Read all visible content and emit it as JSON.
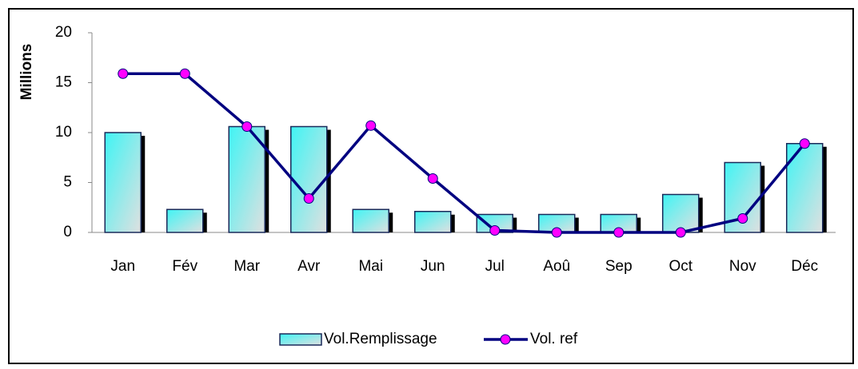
{
  "chart_data": {
    "type": "bar_line",
    "y_axis_label": "Millions",
    "categories": [
      "Jan",
      "Fév",
      "Mar",
      "Avr",
      "Mai",
      "Jun",
      "Jul",
      "Aoû",
      "Sep",
      "Oct",
      "Nov",
      "Déc"
    ],
    "series": [
      {
        "name": "Vol.Remplissage",
        "type": "bar",
        "color": "#40f0f0",
        "values": [
          10.0,
          2.3,
          10.6,
          10.6,
          2.3,
          2.1,
          1.8,
          1.8,
          1.8,
          3.8,
          7.0,
          8.9
        ]
      },
      {
        "name": "Vol. ref",
        "type": "line",
        "color": "#000080",
        "marker_color": "#ff00ff",
        "values": [
          15.9,
          15.9,
          10.6,
          3.4,
          10.7,
          5.4,
          0.2,
          0,
          0,
          0,
          1.4,
          8.9
        ]
      }
    ],
    "ylim": [
      0,
      20
    ],
    "yticks": [
      0,
      5,
      10,
      15,
      20
    ],
    "legend": "bottom"
  }
}
